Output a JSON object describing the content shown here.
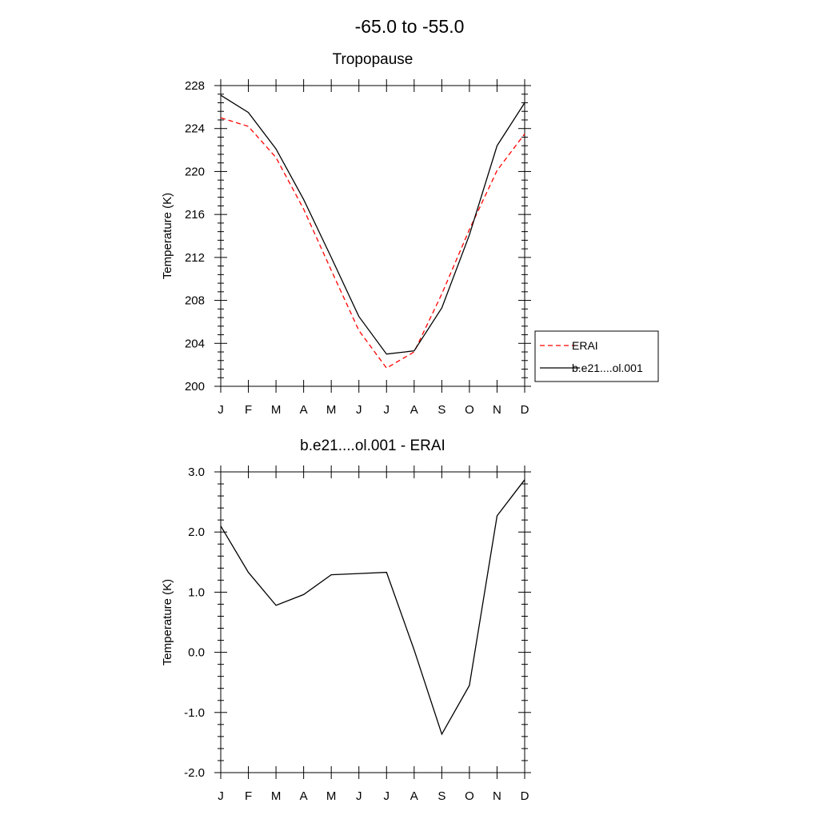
{
  "page": {
    "title": "-65.0 to -55.0"
  },
  "chart_data": [
    {
      "type": "line",
      "title": "Tropopause",
      "xlabel": "",
      "ylabel": "Temperature (K)",
      "categories": [
        "J",
        "F",
        "M",
        "A",
        "M",
        "J",
        "J",
        "A",
        "S",
        "O",
        "N",
        "D"
      ],
      "ylim": [
        200,
        228
      ],
      "yticks": [
        200,
        204,
        208,
        212,
        216,
        220,
        224,
        228
      ],
      "ytick_labels": [
        "200",
        "204",
        "208",
        "212",
        "216",
        "220",
        "224",
        "228"
      ],
      "legend_position": "right",
      "series": [
        {
          "name": "ERAI",
          "color": "#ff0000",
          "dash": "dashed",
          "values": [
            225.0,
            224.2,
            221.3,
            216.5,
            210.8,
            205.2,
            201.7,
            203.2,
            208.6,
            214.6,
            220.1,
            223.5
          ]
        },
        {
          "name": "b.e21....ol.001",
          "color": "#000000",
          "dash": "solid",
          "values": [
            227.1,
            225.5,
            222.1,
            217.4,
            212.0,
            206.5,
            203.0,
            203.3,
            207.3,
            214.1,
            222.4,
            226.4
          ]
        }
      ]
    },
    {
      "type": "line",
      "title": "b.e21....ol.001 - ERAI",
      "xlabel": "",
      "ylabel": "Temperature (K)",
      "categories": [
        "J",
        "F",
        "M",
        "A",
        "M",
        "J",
        "J",
        "A",
        "S",
        "O",
        "N",
        "D"
      ],
      "ylim": [
        -2.0,
        3.0
      ],
      "yticks": [
        -2,
        -1,
        0,
        1,
        2,
        3
      ],
      "ytick_labels": [
        "-2.0",
        "-1.0",
        "0.0",
        "1.0",
        "2.0",
        "3.0"
      ],
      "series": [
        {
          "color": "#000000",
          "dash": "solid",
          "values": [
            2.1,
            1.33,
            0.78,
            0.96,
            1.29,
            1.31,
            1.33,
            0.04,
            -1.36,
            -0.55,
            2.27,
            2.87
          ]
        }
      ]
    }
  ]
}
